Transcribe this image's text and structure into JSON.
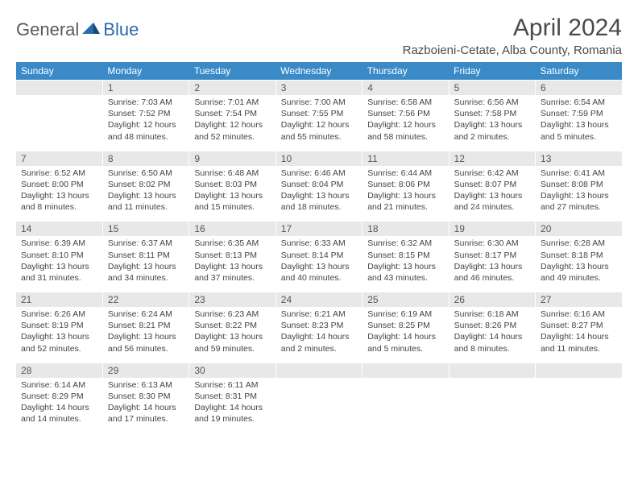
{
  "logo": {
    "general": "General",
    "blue": "Blue"
  },
  "title": "April 2024",
  "location": "Razboieni-Cetate, Alba County, Romania",
  "colors": {
    "header_bg": "#3a8ac8",
    "header_text": "#ffffff",
    "date_bg": "#e8e8e8",
    "date_text": "#555555",
    "body_text": "#444444",
    "logo_gray": "#5a5a5a",
    "logo_blue": "#2a6ab0"
  },
  "days_of_week": [
    "Sunday",
    "Monday",
    "Tuesday",
    "Wednesday",
    "Thursday",
    "Friday",
    "Saturday"
  ],
  "weeks": [
    {
      "dates": [
        "",
        "1",
        "2",
        "3",
        "4",
        "5",
        "6"
      ],
      "cells": [
        {
          "sunrise": "",
          "sunset": "",
          "daylight": ""
        },
        {
          "sunrise": "Sunrise: 7:03 AM",
          "sunset": "Sunset: 7:52 PM",
          "daylight": "Daylight: 12 hours and 48 minutes."
        },
        {
          "sunrise": "Sunrise: 7:01 AM",
          "sunset": "Sunset: 7:54 PM",
          "daylight": "Daylight: 12 hours and 52 minutes."
        },
        {
          "sunrise": "Sunrise: 7:00 AM",
          "sunset": "Sunset: 7:55 PM",
          "daylight": "Daylight: 12 hours and 55 minutes."
        },
        {
          "sunrise": "Sunrise: 6:58 AM",
          "sunset": "Sunset: 7:56 PM",
          "daylight": "Daylight: 12 hours and 58 minutes."
        },
        {
          "sunrise": "Sunrise: 6:56 AM",
          "sunset": "Sunset: 7:58 PM",
          "daylight": "Daylight: 13 hours and 2 minutes."
        },
        {
          "sunrise": "Sunrise: 6:54 AM",
          "sunset": "Sunset: 7:59 PM",
          "daylight": "Daylight: 13 hours and 5 minutes."
        }
      ]
    },
    {
      "dates": [
        "7",
        "8",
        "9",
        "10",
        "11",
        "12",
        "13"
      ],
      "cells": [
        {
          "sunrise": "Sunrise: 6:52 AM",
          "sunset": "Sunset: 8:00 PM",
          "daylight": "Daylight: 13 hours and 8 minutes."
        },
        {
          "sunrise": "Sunrise: 6:50 AM",
          "sunset": "Sunset: 8:02 PM",
          "daylight": "Daylight: 13 hours and 11 minutes."
        },
        {
          "sunrise": "Sunrise: 6:48 AM",
          "sunset": "Sunset: 8:03 PM",
          "daylight": "Daylight: 13 hours and 15 minutes."
        },
        {
          "sunrise": "Sunrise: 6:46 AM",
          "sunset": "Sunset: 8:04 PM",
          "daylight": "Daylight: 13 hours and 18 minutes."
        },
        {
          "sunrise": "Sunrise: 6:44 AM",
          "sunset": "Sunset: 8:06 PM",
          "daylight": "Daylight: 13 hours and 21 minutes."
        },
        {
          "sunrise": "Sunrise: 6:42 AM",
          "sunset": "Sunset: 8:07 PM",
          "daylight": "Daylight: 13 hours and 24 minutes."
        },
        {
          "sunrise": "Sunrise: 6:41 AM",
          "sunset": "Sunset: 8:08 PM",
          "daylight": "Daylight: 13 hours and 27 minutes."
        }
      ]
    },
    {
      "dates": [
        "14",
        "15",
        "16",
        "17",
        "18",
        "19",
        "20"
      ],
      "cells": [
        {
          "sunrise": "Sunrise: 6:39 AM",
          "sunset": "Sunset: 8:10 PM",
          "daylight": "Daylight: 13 hours and 31 minutes."
        },
        {
          "sunrise": "Sunrise: 6:37 AM",
          "sunset": "Sunset: 8:11 PM",
          "daylight": "Daylight: 13 hours and 34 minutes."
        },
        {
          "sunrise": "Sunrise: 6:35 AM",
          "sunset": "Sunset: 8:13 PM",
          "daylight": "Daylight: 13 hours and 37 minutes."
        },
        {
          "sunrise": "Sunrise: 6:33 AM",
          "sunset": "Sunset: 8:14 PM",
          "daylight": "Daylight: 13 hours and 40 minutes."
        },
        {
          "sunrise": "Sunrise: 6:32 AM",
          "sunset": "Sunset: 8:15 PM",
          "daylight": "Daylight: 13 hours and 43 minutes."
        },
        {
          "sunrise": "Sunrise: 6:30 AM",
          "sunset": "Sunset: 8:17 PM",
          "daylight": "Daylight: 13 hours and 46 minutes."
        },
        {
          "sunrise": "Sunrise: 6:28 AM",
          "sunset": "Sunset: 8:18 PM",
          "daylight": "Daylight: 13 hours and 49 minutes."
        }
      ]
    },
    {
      "dates": [
        "21",
        "22",
        "23",
        "24",
        "25",
        "26",
        "27"
      ],
      "cells": [
        {
          "sunrise": "Sunrise: 6:26 AM",
          "sunset": "Sunset: 8:19 PM",
          "daylight": "Daylight: 13 hours and 52 minutes."
        },
        {
          "sunrise": "Sunrise: 6:24 AM",
          "sunset": "Sunset: 8:21 PM",
          "daylight": "Daylight: 13 hours and 56 minutes."
        },
        {
          "sunrise": "Sunrise: 6:23 AM",
          "sunset": "Sunset: 8:22 PM",
          "daylight": "Daylight: 13 hours and 59 minutes."
        },
        {
          "sunrise": "Sunrise: 6:21 AM",
          "sunset": "Sunset: 8:23 PM",
          "daylight": "Daylight: 14 hours and 2 minutes."
        },
        {
          "sunrise": "Sunrise: 6:19 AM",
          "sunset": "Sunset: 8:25 PM",
          "daylight": "Daylight: 14 hours and 5 minutes."
        },
        {
          "sunrise": "Sunrise: 6:18 AM",
          "sunset": "Sunset: 8:26 PM",
          "daylight": "Daylight: 14 hours and 8 minutes."
        },
        {
          "sunrise": "Sunrise: 6:16 AM",
          "sunset": "Sunset: 8:27 PM",
          "daylight": "Daylight: 14 hours and 11 minutes."
        }
      ]
    },
    {
      "dates": [
        "28",
        "29",
        "30",
        "",
        "",
        "",
        ""
      ],
      "cells": [
        {
          "sunrise": "Sunrise: 6:14 AM",
          "sunset": "Sunset: 8:29 PM",
          "daylight": "Daylight: 14 hours and 14 minutes."
        },
        {
          "sunrise": "Sunrise: 6:13 AM",
          "sunset": "Sunset: 8:30 PM",
          "daylight": "Daylight: 14 hours and 17 minutes."
        },
        {
          "sunrise": "Sunrise: 6:11 AM",
          "sunset": "Sunset: 8:31 PM",
          "daylight": "Daylight: 14 hours and 19 minutes."
        },
        {
          "sunrise": "",
          "sunset": "",
          "daylight": ""
        },
        {
          "sunrise": "",
          "sunset": "",
          "daylight": ""
        },
        {
          "sunrise": "",
          "sunset": "",
          "daylight": ""
        },
        {
          "sunrise": "",
          "sunset": "",
          "daylight": ""
        }
      ]
    }
  ]
}
